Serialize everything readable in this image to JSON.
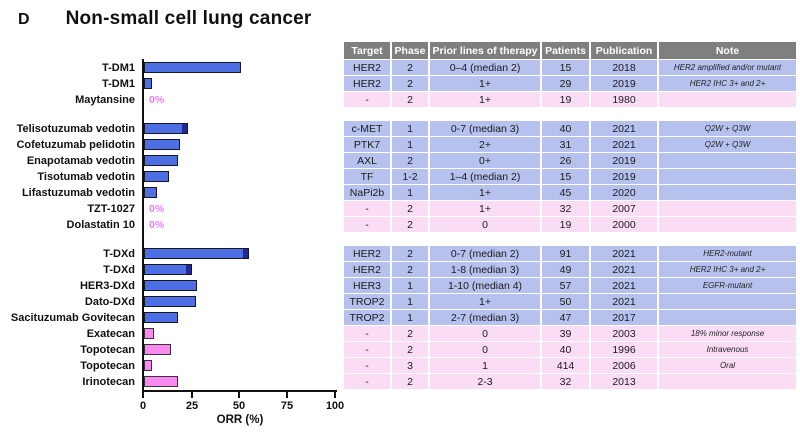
{
  "panel_label": "D",
  "title": "Non-small cell lung cancer",
  "colors": {
    "bar_blue": "#4e6fe4",
    "bar_pink": "#f98af0",
    "bar_dark_tip": "#20289a",
    "row_blue": "#b6c1ee",
    "row_pink": "#fadcf5",
    "header_bg": "#7f7f7f",
    "zero_label": "#f07df0"
  },
  "chart_data": {
    "type": "bar",
    "orientation": "horizontal",
    "title": "Non-small cell lung cancer",
    "xlabel": "ORR (%)",
    "xlim": [
      0,
      100
    ],
    "xticks": [
      0,
      25,
      50,
      75,
      100
    ],
    "grid": false,
    "zero_label_text": "0%",
    "categories": [
      "T-DM1",
      "T-DM1",
      "Maytansine",
      "Telisotuzumab vedotin",
      "Cofetuzumab pelidotin",
      "Enapotamab vedotin",
      "Tisotumab vedotin",
      "Lifastuzumab vedotin",
      "TZT-1027",
      "Dolastatin 10",
      "T-DXd",
      "T-DXd",
      "HER3-DXd",
      "Dato-DXd",
      "Sacituzumab Govitecan",
      "Exatecan",
      "Topotecan",
      "Topotecan",
      "Irinotecan"
    ],
    "values": [
      51,
      4,
      0,
      23,
      19,
      18,
      13,
      7,
      0,
      0,
      55,
      25,
      28,
      27,
      18,
      5,
      14,
      4,
      18
    ],
    "bar_colors": [
      "blue",
      "blue",
      "pink",
      "blue",
      "blue",
      "blue",
      "blue",
      "blue",
      "pink",
      "pink",
      "blue",
      "blue",
      "blue",
      "blue",
      "blue",
      "pink",
      "pink",
      "pink",
      "pink"
    ],
    "dark_tip_indices": [
      3,
      10,
      11
    ]
  },
  "table": {
    "headers": [
      "Target",
      "Phase",
      "Prior lines of therapy",
      "Patients",
      "Publication",
      "Note"
    ]
  },
  "rows": [
    {
      "group": 1,
      "target": "HER2",
      "phase": "2",
      "prior": "0–4 (median 2)",
      "patients": "15",
      "publication": "2018",
      "note": "HER2 amplified and/or mutant"
    },
    {
      "group": 1,
      "target": "HER2",
      "phase": "2",
      "prior": "1+",
      "patients": "29",
      "publication": "2019",
      "note": "HER2 IHC 3+ and 2+"
    },
    {
      "group": 1,
      "target": "-",
      "phase": "2",
      "prior": "1+",
      "patients": "19",
      "publication": "1980",
      "note": ""
    },
    {
      "group": 2,
      "target": "c-MET",
      "phase": "1",
      "prior": "0-7 (median 3)",
      "patients": "40",
      "publication": "2021",
      "note": "Q2W + Q3W"
    },
    {
      "group": 2,
      "target": "PTK7",
      "phase": "1",
      "prior": "2+",
      "patients": "31",
      "publication": "2021",
      "note": "Q2W + Q3W"
    },
    {
      "group": 2,
      "target": "AXL",
      "phase": "2",
      "prior": "0+",
      "patients": "26",
      "publication": "2019",
      "note": ""
    },
    {
      "group": 2,
      "target": "TF",
      "phase": "1-2",
      "prior": "1–4 (median 2)",
      "patients": "15",
      "publication": "2019",
      "note": ""
    },
    {
      "group": 2,
      "target": "NaPi2b",
      "phase": "1",
      "prior": "1+",
      "patients": "45",
      "publication": "2020",
      "note": ""
    },
    {
      "group": 2,
      "target": "-",
      "phase": "2",
      "prior": "1+",
      "patients": "32",
      "publication": "2007",
      "note": ""
    },
    {
      "group": 2,
      "target": "-",
      "phase": "2",
      "prior": "0",
      "patients": "19",
      "publication": "2000",
      "note": ""
    },
    {
      "group": 3,
      "target": "HER2",
      "phase": "2",
      "prior": "0-7 (median 2)",
      "patients": "91",
      "publication": "2021",
      "note": "HER2-mutant"
    },
    {
      "group": 3,
      "target": "HER2",
      "phase": "2",
      "prior": "1-8 (median 3)",
      "patients": "49",
      "publication": "2021",
      "note": "HER2 IHC 3+ and 2+"
    },
    {
      "group": 3,
      "target": "HER3",
      "phase": "1",
      "prior": "1-10 (median 4)",
      "patients": "57",
      "publication": "2021",
      "note": "EGFR-mutant"
    },
    {
      "group": 3,
      "target": "TROP2",
      "phase": "1",
      "prior": "1+",
      "patients": "50",
      "publication": "2021",
      "note": ""
    },
    {
      "group": 3,
      "target": "TROP2",
      "phase": "1",
      "prior": "2-7 (median 3)",
      "patients": "47",
      "publication": "2017",
      "note": ""
    },
    {
      "group": 3,
      "target": "-",
      "phase": "2",
      "prior": "0",
      "patients": "39",
      "publication": "2003",
      "note": "18% minor response"
    },
    {
      "group": 3,
      "target": "-",
      "phase": "2",
      "prior": "0",
      "patients": "40",
      "publication": "1996",
      "note": "Intravenous"
    },
    {
      "group": 3,
      "target": "-",
      "phase": "3",
      "prior": "1",
      "patients": "414",
      "publication": "2006",
      "note": "Oral"
    },
    {
      "group": 3,
      "target": "-",
      "phase": "2",
      "prior": "2-3",
      "patients": "32",
      "publication": "2013",
      "note": ""
    }
  ]
}
